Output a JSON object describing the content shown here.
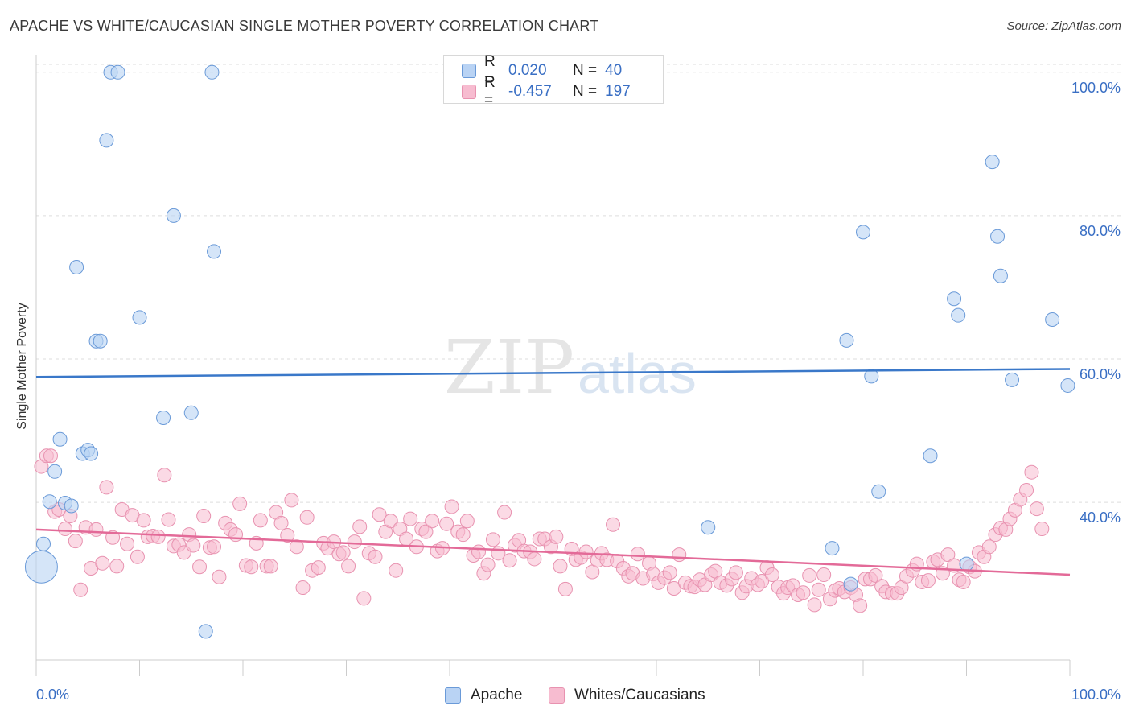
{
  "title": "APACHE VS WHITE/CAUCASIAN SINGLE MOTHER POVERTY CORRELATION CHART",
  "source": "Source: ZipAtlas.com",
  "watermark": {
    "zip": "ZIP",
    "atlas": "atlas"
  },
  "colors": {
    "apache_fill": "#b9d3f4",
    "apache_stroke": "#6a9ad8",
    "apache_line": "#3a78c9",
    "white_fill": "#f7bcd0",
    "white_stroke": "#e892b0",
    "white_line": "#e36a98",
    "axis_text": "#3a6fc4",
    "grid": "#dddddd"
  },
  "legend": {
    "rows": [
      {
        "series": "apache",
        "r_label": "R =",
        "r_value": "0.020",
        "n_label": "N =",
        "n_value": "40"
      },
      {
        "series": "white",
        "r_label": "R =",
        "r_value": "-0.457",
        "n_label": "N =",
        "n_value": "197"
      }
    ]
  },
  "bottom_legend": {
    "apache": "Apache",
    "white": "Whites/Caucasians"
  },
  "chart_data": {
    "type": "scatter",
    "title": "APACHE VS WHITE/CAUCASIAN SINGLE MOTHER POVERTY CORRELATION CHART",
    "xlabel": "",
    "ylabel": "Single Mother Poverty",
    "xlim": [
      0,
      100
    ],
    "ylim": [
      18,
      102
    ],
    "x_tick_labels": [
      "0.0%",
      "100.0%"
    ],
    "y_ticks": [
      40,
      60,
      80,
      100
    ],
    "y_tick_labels": [
      "40.0%",
      "60.0%",
      "80.0%",
      "100.0%"
    ],
    "series": [
      {
        "name": "Apache",
        "r": 0.02,
        "n": 40,
        "trend": {
          "x": [
            0,
            100
          ],
          "y": [
            57.5,
            58.6
          ]
        },
        "points": [
          {
            "x": 7.2,
            "y": 100
          },
          {
            "x": 7.9,
            "y": 100
          },
          {
            "x": 17,
            "y": 100
          },
          {
            "x": 6.8,
            "y": 90.5
          },
          {
            "x": 13.3,
            "y": 80
          },
          {
            "x": 17.2,
            "y": 75
          },
          {
            "x": 3.9,
            "y": 72.8
          },
          {
            "x": 10,
            "y": 65.8
          },
          {
            "x": 5.8,
            "y": 62.5
          },
          {
            "x": 6.2,
            "y": 62.5
          },
          {
            "x": 12.3,
            "y": 51.8
          },
          {
            "x": 15,
            "y": 52.5
          },
          {
            "x": 2.3,
            "y": 48.8
          },
          {
            "x": 4.5,
            "y": 46.8
          },
          {
            "x": 5,
            "y": 47.3
          },
          {
            "x": 5.3,
            "y": 46.8
          },
          {
            "x": 1.8,
            "y": 44.3
          },
          {
            "x": 1.3,
            "y": 40.1
          },
          {
            "x": 2.8,
            "y": 39.9
          },
          {
            "x": 3.4,
            "y": 39.5
          },
          {
            "x": 0.7,
            "y": 34.2
          },
          {
            "x": 0.5,
            "y": 31
          },
          {
            "x": 16.4,
            "y": 22
          },
          {
            "x": 65,
            "y": 36.5
          },
          {
            "x": 77,
            "y": 33.6
          },
          {
            "x": 80,
            "y": 77.7
          },
          {
            "x": 78.4,
            "y": 62.6
          },
          {
            "x": 80.8,
            "y": 57.6
          },
          {
            "x": 81.5,
            "y": 41.5
          },
          {
            "x": 86.5,
            "y": 46.5
          },
          {
            "x": 88.8,
            "y": 68.4
          },
          {
            "x": 89.2,
            "y": 66.1
          },
          {
            "x": 92.5,
            "y": 87.5
          },
          {
            "x": 93,
            "y": 77.1
          },
          {
            "x": 93.3,
            "y": 71.6
          },
          {
            "x": 94.4,
            "y": 57.1
          },
          {
            "x": 98.3,
            "y": 65.5
          },
          {
            "x": 99.8,
            "y": 56.3
          },
          {
            "x": 78.8,
            "y": 28.6
          },
          {
            "x": 90,
            "y": 31.4
          }
        ]
      },
      {
        "name": "Whites/Caucasians",
        "r": -0.457,
        "n": 197,
        "trend": {
          "x": [
            0,
            100
          ],
          "y": [
            36.2,
            29.9
          ]
        },
        "points": [
          {
            "x": 0.5,
            "y": 45
          },
          {
            "x": 1,
            "y": 46.5
          },
          {
            "x": 1.4,
            "y": 46.5
          },
          {
            "x": 1.8,
            "y": 38.7
          },
          {
            "x": 2.2,
            "y": 39
          },
          {
            "x": 2.8,
            "y": 36.3
          },
          {
            "x": 3.3,
            "y": 38.1
          },
          {
            "x": 3.8,
            "y": 34.6
          },
          {
            "x": 4.3,
            "y": 27.8
          },
          {
            "x": 4.8,
            "y": 36.5
          },
          {
            "x": 5.3,
            "y": 30.8
          },
          {
            "x": 5.8,
            "y": 36.2
          },
          {
            "x": 6.4,
            "y": 31.5
          },
          {
            "x": 6.8,
            "y": 42.1
          },
          {
            "x": 7.4,
            "y": 35.1
          },
          {
            "x": 7.8,
            "y": 31.1
          },
          {
            "x": 8.3,
            "y": 39
          },
          {
            "x": 8.8,
            "y": 34.2
          },
          {
            "x": 9.3,
            "y": 38.2
          },
          {
            "x": 9.8,
            "y": 32.4
          },
          {
            "x": 10.4,
            "y": 37.5
          },
          {
            "x": 10.8,
            "y": 35.2
          },
          {
            "x": 11.3,
            "y": 35.3
          },
          {
            "x": 11.8,
            "y": 35.2
          },
          {
            "x": 12.4,
            "y": 43.8
          },
          {
            "x": 12.8,
            "y": 37.6
          },
          {
            "x": 13.3,
            "y": 33.9
          },
          {
            "x": 13.8,
            "y": 34.1
          },
          {
            "x": 14.3,
            "y": 33
          },
          {
            "x": 14.8,
            "y": 35.5
          },
          {
            "x": 15.2,
            "y": 34
          },
          {
            "x": 15.8,
            "y": 31
          },
          {
            "x": 16.2,
            "y": 38.1
          },
          {
            "x": 16.8,
            "y": 33.7
          },
          {
            "x": 17.2,
            "y": 33.8
          },
          {
            "x": 17.7,
            "y": 29.6
          },
          {
            "x": 18.3,
            "y": 37.1
          },
          {
            "x": 18.8,
            "y": 36.2
          },
          {
            "x": 19.3,
            "y": 35.5
          },
          {
            "x": 19.7,
            "y": 39.8
          },
          {
            "x": 20.3,
            "y": 31.2
          },
          {
            "x": 20.8,
            "y": 31
          },
          {
            "x": 21.3,
            "y": 34.3
          },
          {
            "x": 21.7,
            "y": 37.5
          },
          {
            "x": 22.3,
            "y": 31.1
          },
          {
            "x": 22.7,
            "y": 31.1
          },
          {
            "x": 23.2,
            "y": 38.6
          },
          {
            "x": 23.7,
            "y": 37.1
          },
          {
            "x": 24.3,
            "y": 35.4
          },
          {
            "x": 24.7,
            "y": 40.3
          },
          {
            "x": 25.2,
            "y": 33.8
          },
          {
            "x": 25.8,
            "y": 28.1
          },
          {
            "x": 26.2,
            "y": 37.9
          },
          {
            "x": 26.7,
            "y": 30.5
          },
          {
            "x": 27.3,
            "y": 30.9
          },
          {
            "x": 27.8,
            "y": 34.3
          },
          {
            "x": 28.2,
            "y": 33.6
          },
          {
            "x": 28.8,
            "y": 34.5
          },
          {
            "x": 29.3,
            "y": 32.8
          },
          {
            "x": 29.7,
            "y": 33
          },
          {
            "x": 30.2,
            "y": 31.1
          },
          {
            "x": 30.8,
            "y": 34.5
          },
          {
            "x": 31.3,
            "y": 36.6
          },
          {
            "x": 31.7,
            "y": 26.6
          },
          {
            "x": 32.2,
            "y": 32.9
          },
          {
            "x": 32.8,
            "y": 32.4
          },
          {
            "x": 33.2,
            "y": 38.3
          },
          {
            "x": 33.8,
            "y": 35.9
          },
          {
            "x": 34.3,
            "y": 37.4
          },
          {
            "x": 34.8,
            "y": 30.5
          },
          {
            "x": 35.2,
            "y": 36.3
          },
          {
            "x": 35.8,
            "y": 34.9
          },
          {
            "x": 36.2,
            "y": 37.7
          },
          {
            "x": 36.8,
            "y": 33.8
          },
          {
            "x": 37.3,
            "y": 36.3
          },
          {
            "x": 37.7,
            "y": 35.9
          },
          {
            "x": 38.3,
            "y": 37.4
          },
          {
            "x": 38.8,
            "y": 33.2
          },
          {
            "x": 39.3,
            "y": 33.6
          },
          {
            "x": 39.7,
            "y": 37
          },
          {
            "x": 40.2,
            "y": 39.4
          },
          {
            "x": 40.8,
            "y": 35.9
          },
          {
            "x": 41.3,
            "y": 35.5
          },
          {
            "x": 41.7,
            "y": 37.4
          },
          {
            "x": 42.3,
            "y": 32.6
          },
          {
            "x": 42.8,
            "y": 33.1
          },
          {
            "x": 43.3,
            "y": 30.1
          },
          {
            "x": 43.7,
            "y": 31.3
          },
          {
            "x": 44.2,
            "y": 34.8
          },
          {
            "x": 44.7,
            "y": 32.9
          },
          {
            "x": 45.3,
            "y": 38.6
          },
          {
            "x": 45.8,
            "y": 31.9
          },
          {
            "x": 46.3,
            "y": 34
          },
          {
            "x": 46.7,
            "y": 34.7
          },
          {
            "x": 47.2,
            "y": 33.2
          },
          {
            "x": 47.8,
            "y": 33.1
          },
          {
            "x": 48.2,
            "y": 32.1
          },
          {
            "x": 48.7,
            "y": 34.9
          },
          {
            "x": 49.2,
            "y": 34.9
          },
          {
            "x": 49.8,
            "y": 33.8
          },
          {
            "x": 50.3,
            "y": 35.2
          },
          {
            "x": 50.7,
            "y": 31.1
          },
          {
            "x": 51.2,
            "y": 27.9
          },
          {
            "x": 51.8,
            "y": 33.5
          },
          {
            "x": 52.2,
            "y": 32
          },
          {
            "x": 52.7,
            "y": 32.3
          },
          {
            "x": 53.2,
            "y": 33.1
          },
          {
            "x": 53.8,
            "y": 30.3
          },
          {
            "x": 54.3,
            "y": 31.9
          },
          {
            "x": 54.7,
            "y": 32.9
          },
          {
            "x": 55.2,
            "y": 32
          },
          {
            "x": 55.8,
            "y": 36.9
          },
          {
            "x": 56.2,
            "y": 31.8
          },
          {
            "x": 56.8,
            "y": 30.8
          },
          {
            "x": 57.3,
            "y": 29.7
          },
          {
            "x": 57.7,
            "y": 30.1
          },
          {
            "x": 58.2,
            "y": 32.8
          },
          {
            "x": 58.7,
            "y": 29.4
          },
          {
            "x": 59.3,
            "y": 31.5
          },
          {
            "x": 59.7,
            "y": 30
          },
          {
            "x": 60.2,
            "y": 28.8
          },
          {
            "x": 60.8,
            "y": 29.5
          },
          {
            "x": 61.3,
            "y": 30.2
          },
          {
            "x": 61.7,
            "y": 28
          },
          {
            "x": 62.2,
            "y": 32.7
          },
          {
            "x": 62.8,
            "y": 28.8
          },
          {
            "x": 63.3,
            "y": 28.3
          },
          {
            "x": 63.7,
            "y": 28.2
          },
          {
            "x": 64.2,
            "y": 29.2
          },
          {
            "x": 64.7,
            "y": 28.5
          },
          {
            "x": 65.3,
            "y": 29.9
          },
          {
            "x": 65.7,
            "y": 30.4
          },
          {
            "x": 66.2,
            "y": 28.8
          },
          {
            "x": 66.8,
            "y": 28.4
          },
          {
            "x": 67.3,
            "y": 29.3
          },
          {
            "x": 67.7,
            "y": 30.2
          },
          {
            "x": 68.3,
            "y": 27.4
          },
          {
            "x": 68.7,
            "y": 28.3
          },
          {
            "x": 69.2,
            "y": 29.4
          },
          {
            "x": 69.8,
            "y": 28.5
          },
          {
            "x": 70.2,
            "y": 29
          },
          {
            "x": 70.7,
            "y": 30.9
          },
          {
            "x": 71.2,
            "y": 29.9
          },
          {
            "x": 71.8,
            "y": 28.2
          },
          {
            "x": 72.3,
            "y": 27.3
          },
          {
            "x": 72.7,
            "y": 28.1
          },
          {
            "x": 73.2,
            "y": 28.4
          },
          {
            "x": 73.7,
            "y": 27.1
          },
          {
            "x": 74.2,
            "y": 27.4
          },
          {
            "x": 74.8,
            "y": 29.8
          },
          {
            "x": 75.3,
            "y": 25.7
          },
          {
            "x": 75.7,
            "y": 27.8
          },
          {
            "x": 76.2,
            "y": 29.9
          },
          {
            "x": 76.8,
            "y": 26.5
          },
          {
            "x": 77.3,
            "y": 27.7
          },
          {
            "x": 77.7,
            "y": 28
          },
          {
            "x": 78.2,
            "y": 27.5
          },
          {
            "x": 78.8,
            "y": 28.1
          },
          {
            "x": 79.3,
            "y": 27.1
          },
          {
            "x": 79.7,
            "y": 25.6
          },
          {
            "x": 80.2,
            "y": 29.3
          },
          {
            "x": 80.7,
            "y": 29.3
          },
          {
            "x": 81.2,
            "y": 29.8
          },
          {
            "x": 81.8,
            "y": 28.3
          },
          {
            "x": 82.2,
            "y": 27.5
          },
          {
            "x": 82.8,
            "y": 27.3
          },
          {
            "x": 83.3,
            "y": 27.3
          },
          {
            "x": 83.7,
            "y": 28.1
          },
          {
            "x": 84.2,
            "y": 29.7
          },
          {
            "x": 84.8,
            "y": 30.5
          },
          {
            "x": 85.2,
            "y": 31.4
          },
          {
            "x": 85.7,
            "y": 28.9
          },
          {
            "x": 86.3,
            "y": 29.1
          },
          {
            "x": 86.8,
            "y": 31.7
          },
          {
            "x": 87.2,
            "y": 32
          },
          {
            "x": 87.7,
            "y": 30.1
          },
          {
            "x": 88.2,
            "y": 32.7
          },
          {
            "x": 88.8,
            "y": 31.2
          },
          {
            "x": 89.3,
            "y": 29.2
          },
          {
            "x": 89.7,
            "y": 28.9
          },
          {
            "x": 90.3,
            "y": 31
          },
          {
            "x": 90.8,
            "y": 30.4
          },
          {
            "x": 91.2,
            "y": 33
          },
          {
            "x": 91.7,
            "y": 32.4
          },
          {
            "x": 92.2,
            "y": 33.8
          },
          {
            "x": 92.8,
            "y": 35.5
          },
          {
            "x": 93.3,
            "y": 36.4
          },
          {
            "x": 93.8,
            "y": 36.2
          },
          {
            "x": 94.2,
            "y": 37.7
          },
          {
            "x": 94.7,
            "y": 38.9
          },
          {
            "x": 95.2,
            "y": 40.4
          },
          {
            "x": 95.8,
            "y": 41.7
          },
          {
            "x": 96.3,
            "y": 44.2
          },
          {
            "x": 96.8,
            "y": 39.1
          },
          {
            "x": 97.3,
            "y": 36.3
          }
        ]
      }
    ]
  }
}
